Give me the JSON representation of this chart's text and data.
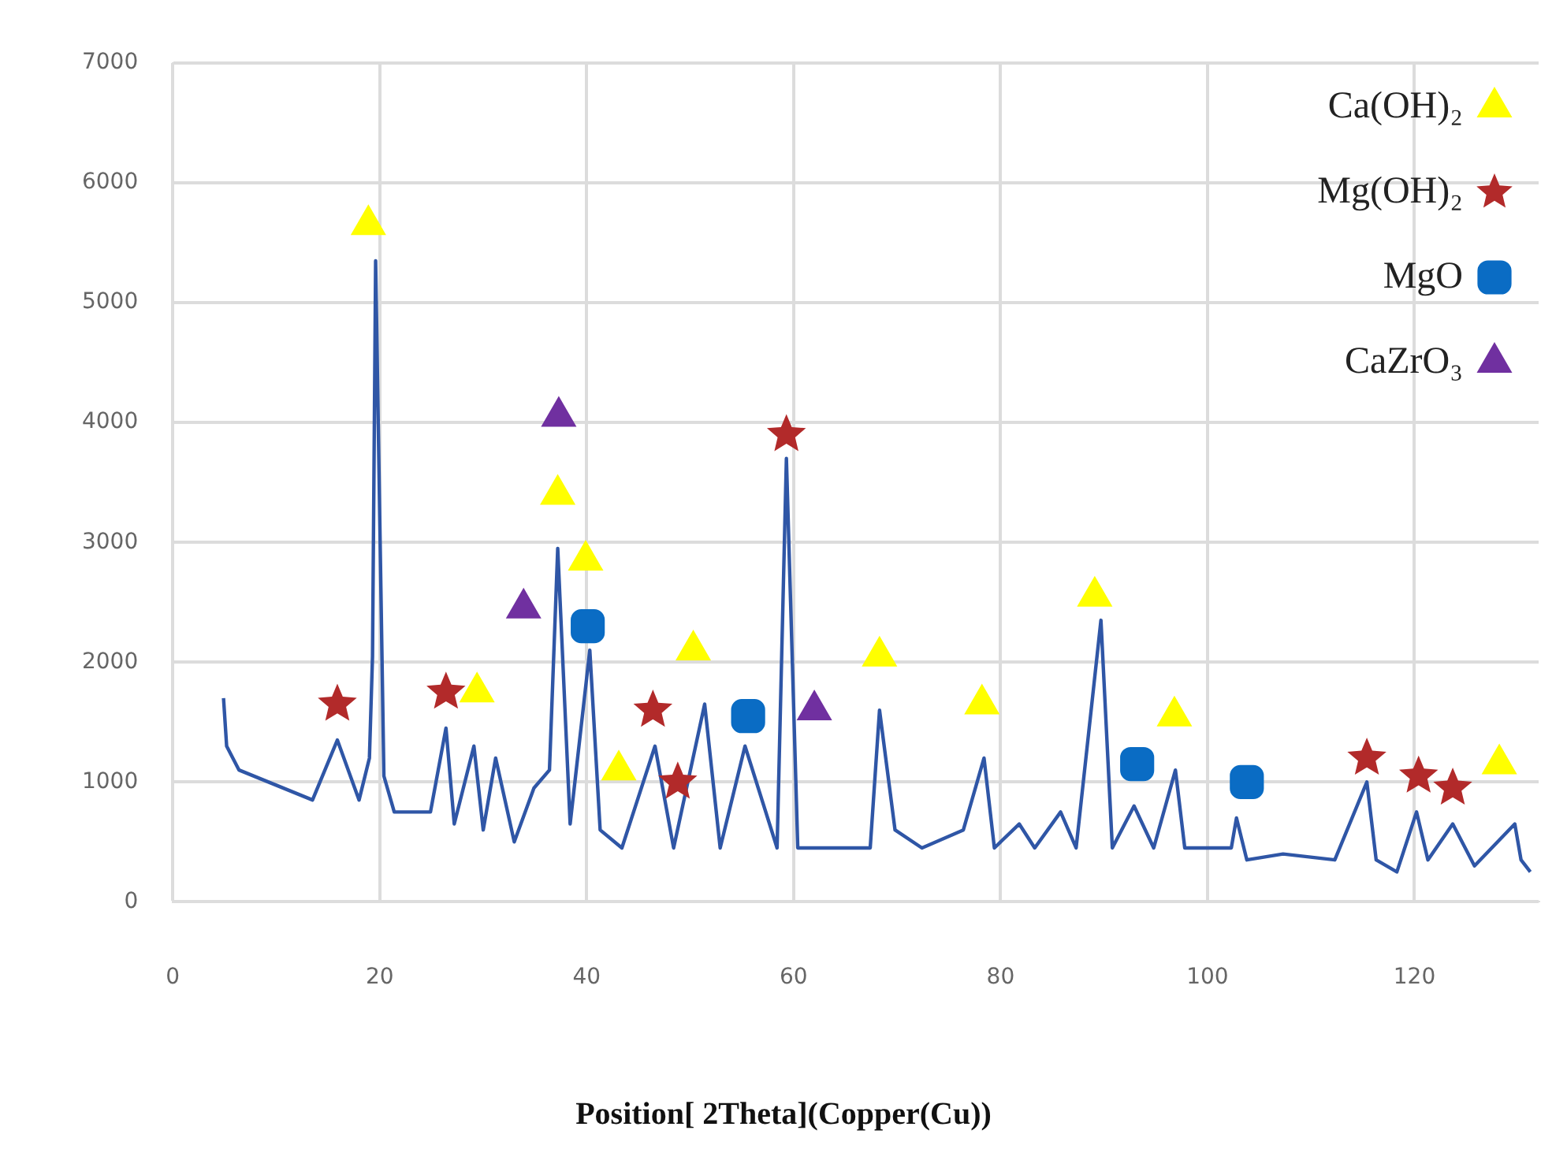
{
  "chart_data": {
    "type": "line",
    "xlabel": "Position[ 2Theta](Copper(Cu))",
    "xlim": [
      0,
      132
    ],
    "xticks": [
      0,
      20,
      40,
      60,
      80,
      100,
      120
    ],
    "ylim": [
      0,
      7000
    ],
    "yticks": [
      0,
      1000,
      2000,
      3000,
      4000,
      5000,
      6000,
      7000
    ],
    "grid": true,
    "legend": "top right",
    "series": [
      {
        "color": "#2f56a6",
        "marker": "none",
        "x": [
          4.9,
          5.2,
          6.4,
          13.5,
          15.9,
          18,
          19,
          19.3,
          19.6,
          20.4,
          21.4,
          24.9,
          26.4,
          27.2,
          29.1,
          30,
          31.2,
          33,
          34.9,
          36.4,
          37.2,
          38.4,
          40.3,
          41.3,
          43.4,
          46.6,
          48.4,
          51.4,
          52.9,
          55.3,
          58.4,
          59.3,
          60.4,
          67.4,
          68.3,
          69.8,
          72.4,
          76.4,
          78.4,
          79.4,
          81.8,
          83.3,
          85.8,
          87.3,
          89.7,
          90.8,
          92.9,
          94.8,
          96.9,
          97.8,
          102.3,
          102.8,
          103.8,
          107.3,
          112.3,
          115.4,
          116.3,
          118.3,
          120.2,
          121.3,
          123.7,
          125.8,
          129.7,
          130.3,
          131.2
        ],
        "values": [
          1700,
          1300,
          1100,
          850,
          1350,
          850,
          1200,
          2050,
          5350,
          1050,
          750,
          750,
          1450,
          650,
          1300,
          600,
          1200,
          500,
          950,
          1100,
          2950,
          650,
          2100,
          600,
          450,
          1300,
          450,
          1650,
          450,
          1300,
          450,
          3700,
          450,
          450,
          1600,
          600,
          450,
          600,
          1200,
          450,
          650,
          450,
          750,
          450,
          2350,
          450,
          800,
          450,
          1100,
          450,
          450,
          700,
          350,
          400,
          350,
          1000,
          350,
          250,
          750,
          350,
          650,
          300,
          650,
          350,
          250
        ]
      },
      {
        "type": "scatter",
        "name": "Ca(OH)₂",
        "color": "#ffff00",
        "marker": "triangle",
        "x": [
          18.9,
          29.4,
          37.2,
          39.9,
          43.1,
          50.3,
          68.3,
          78.2,
          89.1,
          96.8,
          128.2
        ],
        "values": [
          5650,
          1750,
          3400,
          2850,
          1100,
          2100,
          2050,
          1650,
          2550,
          1550,
          1150
        ]
      },
      {
        "type": "scatter",
        "name": "Mg(OH)₂",
        "color": "#b22a2a",
        "marker": "star",
        "x": [
          15.9,
          26.4,
          46.4,
          48.8,
          59.3,
          115.4,
          120.4,
          123.7
        ],
        "values": [
          1650,
          1750,
          1600,
          1000,
          3900,
          1200,
          1050,
          950
        ]
      },
      {
        "type": "scatter",
        "name": "MgO",
        "color": "#0a6cc4",
        "marker": "square",
        "x": [
          40.1,
          55.6,
          93.2,
          103.8
        ],
        "values": [
          2300,
          1550,
          1150,
          1000
        ]
      },
      {
        "type": "scatter",
        "name": "CaZrO₃",
        "color": "#7030a0",
        "marker": "triangle",
        "x": [
          33.9,
          37.3,
          62
        ],
        "values": [
          2450,
          4050,
          1600
        ]
      }
    ]
  }
}
